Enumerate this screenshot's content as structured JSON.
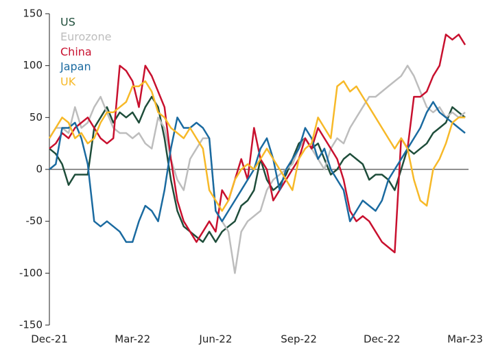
{
  "chart_data": {
    "type": "line",
    "categories": [
      "Dec-21",
      null,
      null,
      null,
      null,
      null,
      null,
      null,
      null,
      null,
      null,
      null,
      null,
      "Mar-22",
      null,
      null,
      null,
      null,
      null,
      null,
      null,
      null,
      null,
      null,
      null,
      null,
      "Jun-22",
      null,
      null,
      null,
      null,
      null,
      null,
      null,
      null,
      null,
      null,
      null,
      null,
      "Sep-22",
      null,
      null,
      null,
      null,
      null,
      null,
      null,
      null,
      null,
      null,
      null,
      null,
      "Dec-22",
      null,
      null,
      null,
      null,
      null,
      null,
      null,
      null,
      null,
      null,
      null,
      null,
      "Mar-23"
    ],
    "series": [
      {
        "name": "US",
        "color": "#1e4d3a",
        "values": [
          20,
          15,
          5,
          -15,
          -5,
          -5,
          -5,
          40,
          50,
          60,
          45,
          55,
          50,
          55,
          45,
          60,
          70,
          60,
          30,
          -10,
          -40,
          -55,
          -60,
          -65,
          -70,
          -60,
          -70,
          -60,
          -55,
          -50,
          -35,
          -30,
          -20,
          10,
          -10,
          -20,
          -15,
          -5,
          10,
          25,
          30,
          20,
          25,
          10,
          -5,
          0,
          10,
          15,
          10,
          5,
          -10,
          -5,
          -5,
          -10,
          -20,
          0,
          20,
          15,
          20,
          25,
          35,
          40,
          45,
          60,
          55,
          50
        ]
      },
      {
        "name": "Eurozone",
        "color": "#bdbdbd",
        "values": [
          30,
          40,
          40,
          35,
          60,
          40,
          45,
          60,
          70,
          55,
          40,
          35,
          35,
          30,
          35,
          25,
          20,
          50,
          40,
          10,
          -10,
          -20,
          10,
          20,
          30,
          30,
          -40,
          -50,
          -60,
          -100,
          -60,
          -50,
          -45,
          -40,
          -20,
          -10,
          -5,
          0,
          5,
          20,
          30,
          20,
          10,
          0,
          20,
          30,
          25,
          40,
          50,
          60,
          70,
          70,
          75,
          80,
          85,
          90,
          100,
          90,
          75,
          60,
          55,
          60,
          50,
          55,
          50,
          55
        ]
      },
      {
        "name": "China",
        "color": "#c8102e",
        "values": [
          20,
          25,
          35,
          30,
          40,
          45,
          50,
          40,
          30,
          25,
          30,
          100,
          95,
          85,
          60,
          100,
          90,
          75,
          60,
          10,
          -30,
          -50,
          -60,
          -70,
          -60,
          -50,
          -60,
          -20,
          -30,
          -10,
          10,
          -10,
          40,
          10,
          0,
          -30,
          -20,
          -10,
          0,
          10,
          30,
          20,
          40,
          30,
          20,
          10,
          -10,
          -40,
          -50,
          -45,
          -50,
          -60,
          -70,
          -75,
          -80,
          30,
          20,
          70,
          70,
          75,
          90,
          100,
          130,
          125,
          130,
          120
        ]
      },
      {
        "name": "Japan",
        "color": "#1a6aa0",
        "values": [
          0,
          5,
          40,
          40,
          45,
          30,
          5,
          -50,
          -55,
          -50,
          -55,
          -60,
          -70,
          -70,
          -50,
          -35,
          -40,
          -50,
          -20,
          20,
          50,
          40,
          40,
          45,
          40,
          30,
          -40,
          -50,
          -40,
          -30,
          -20,
          -10,
          0,
          20,
          30,
          10,
          -20,
          0,
          10,
          20,
          40,
          30,
          10,
          20,
          0,
          -10,
          -20,
          -50,
          -40,
          -30,
          -35,
          -40,
          -30,
          -10,
          0,
          10,
          20,
          30,
          40,
          55,
          65,
          55,
          50,
          45,
          40,
          35
        ]
      },
      {
        "name": "UK",
        "color": "#f7b928",
        "values": [
          30,
          40,
          50,
          45,
          30,
          35,
          25,
          30,
          45,
          55,
          55,
          60,
          65,
          80,
          80,
          85,
          75,
          55,
          50,
          40,
          35,
          30,
          40,
          30,
          20,
          -20,
          -30,
          -40,
          -30,
          -10,
          0,
          5,
          0,
          10,
          20,
          10,
          0,
          -10,
          -20,
          10,
          20,
          25,
          50,
          40,
          30,
          80,
          85,
          75,
          80,
          70,
          60,
          50,
          40,
          30,
          20,
          30,
          20,
          -10,
          -30,
          -35,
          0,
          10,
          25,
          45,
          50,
          50
        ]
      }
    ],
    "ylim": [
      -150,
      150
    ],
    "yticks": [
      -150,
      -100,
      -50,
      0,
      50,
      100,
      150
    ]
  }
}
